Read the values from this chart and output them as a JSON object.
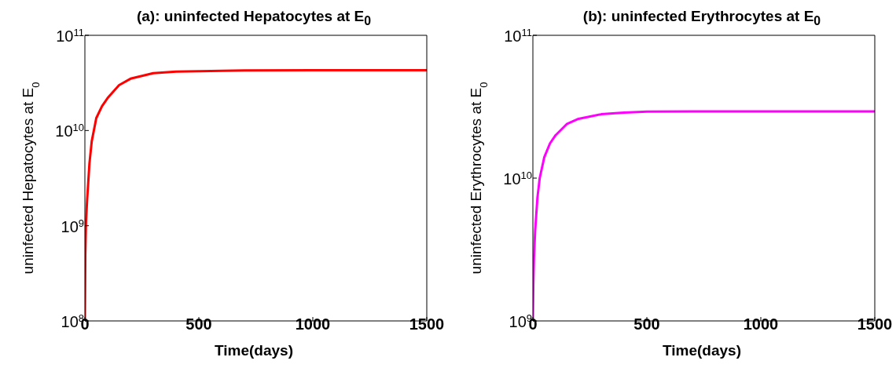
{
  "chart_data": [
    {
      "type": "line",
      "title": "(a): uninfected Hepatocytes at E$_{0}$",
      "xlabel": "Time(days)",
      "ylabel": "uninfected Hepatocytes at E$_{0}$",
      "log": true,
      "x": [
        0,
        2,
        5,
        10,
        20,
        30,
        50,
        75,
        100,
        150,
        200,
        300,
        400,
        500,
        700,
        1000,
        1500
      ],
      "values": [
        100000000.0,
        500000000.0,
        1100000000.0,
        1900000000.0,
        4500000000.0,
        7700000000.0,
        13500000000.0,
        18000000000.0,
        22000000000.0,
        30000000000.0,
        35000000000.0,
        40000000000.0,
        41500000000.0,
        42000000000.0,
        42800000000.0,
        43000000000.0,
        43000000000.0
      ],
      "color": "#ff0000",
      "xlim": [
        0,
        1500
      ],
      "xticks": [
        0,
        500,
        1000,
        1500
      ],
      "ylim": [
        100000000.0,
        100000000000.0
      ],
      "yticks": [
        {
          "value": 100000000.0,
          "label": "10$^{8}$"
        },
        {
          "value": 1000000000.0,
          "label": "10$^{9}$"
        },
        {
          "value": 10000000000.0,
          "label": "10$^{10}$"
        },
        {
          "value": 100000000000.0,
          "label": "10$^{11}$"
        }
      ],
      "grid": false,
      "legend": false
    },
    {
      "type": "line",
      "title": "(b): uninfected Erythrocytes at E$_{0}$",
      "xlabel": "Time(days)",
      "ylabel": "uninfected Erythrocytes at E$_{0}$",
      "log": true,
      "x": [
        0,
        2,
        5,
        10,
        20,
        30,
        50,
        75,
        100,
        150,
        200,
        300,
        400,
        500,
        700,
        1000,
        1500
      ],
      "values": [
        1000000000.0,
        1800000000.0,
        2800000000.0,
        4300000000.0,
        7300000000.0,
        10000000000.0,
        14000000000.0,
        17500000000.0,
        20000000000.0,
        24000000000.0,
        26000000000.0,
        28000000000.0,
        28800000000.0,
        29200000000.0,
        29300000000.0,
        29300000000.0,
        29300000000.0
      ],
      "color": "#ff00ff",
      "xlim": [
        0,
        1500
      ],
      "xticks": [
        0,
        500,
        1000,
        1500
      ],
      "ylim": [
        1000000000.0,
        100000000000.0
      ],
      "yticks": [
        {
          "value": 1000000000.0,
          "label": "10$^{9}$"
        },
        {
          "value": 10000000000.0,
          "label": "10$^{10}$"
        },
        {
          "value": 100000000000.0,
          "label": "10$^{11}$"
        }
      ],
      "grid": false,
      "legend": false
    }
  ]
}
